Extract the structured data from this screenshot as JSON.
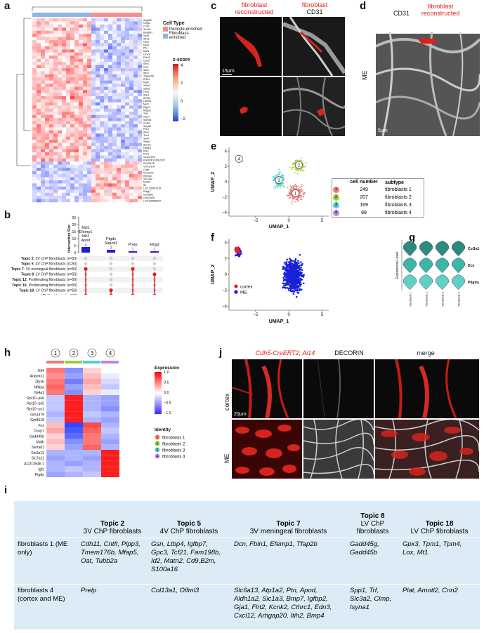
{
  "panels": {
    "a": "a",
    "b": "b",
    "c": "c",
    "d": "d",
    "e": "e",
    "f": "f",
    "g": "g",
    "h": "h",
    "i": "i",
    "j": "j"
  },
  "panel_a": {
    "genes": [
      "Ang20b",
      "Gng11",
      "Crnl1",
      "Sox15",
      "Rps6kl1",
      "Sox5",
      "Sfrp1",
      "Gm4",
      "Nkd1",
      "Phx",
      "Nkd1",
      "Cxxc4",
      "Prkd1",
      "Ccl1b",
      "Sml1",
      "Cer1",
      "Stom",
      "Wis2",
      "Trappc6b",
      "Kl1a1",
      "Rgs2",
      "Vimn2",
      "Ssbp2",
      "Fnd1",
      "Sbp1",
      "Arhnb",
      "Lamb3",
      "Myct",
      "Ptgs2",
      "Mrgpr1",
      "Tnf1",
      "Nepn",
      "Samd4",
      "Gnb4",
      "Smyd1",
      "Pura",
      "Aass",
      "Trhr1",
      "Sax9",
      "Smpd",
      "Slc7p1",
      "Fgfbp1",
      "Rrs1",
      "Phx1",
      "Vmn2r150",
      "EGFP/EYFP/ECFP",
      "Gm25126",
      "Vmn1r104",
      "Cdzb",
      "Vmn2r49",
      "Rbm33",
      "Slc13a2",
      "Mef2d",
      "Ifit",
      "LOC118587918",
      "Phkg1",
      "Gm3893",
      "Gm33409",
      "LOC118568632"
    ],
    "legend_title": "Cell Type",
    "legend_items": [
      "Pericyte-enriched",
      "Fibroblast-enriched"
    ],
    "legend_colors": [
      "#f4908c",
      "#8ab6e0"
    ],
    "zscore_title": "z-score",
    "zscore_ticks": [
      "4",
      "2",
      "0",
      "−2"
    ]
  },
  "panel_b": {
    "ylabel": "Intersection Size",
    "y_ticks": [
      "0",
      "5",
      "10",
      "15",
      "20",
      "25"
    ],
    "bar_values": [
      4,
      2,
      1,
      1
    ],
    "bar_labels": [
      "4",
      "2",
      "1",
      "1"
    ],
    "bar_gene_text": [
      "Nbl1\nEfemp1\nItih2\nApod",
      "Ptgds\nSapcd2",
      "Prelp",
      "Hbgd"
    ],
    "sets": [
      {
        "label_bold": "Topic 2",
        "label_rest": ": 3V ChP fibroblasts (n=50)"
      },
      {
        "label_bold": "Topic 5",
        "label_rest": ": 4V ChP fibroblasts (n=50)"
      },
      {
        "label_bold": "Topic 7",
        "label_rest": ": 3V meningeal fibroblasts (n=50)"
      },
      {
        "label_bold": "Topic 8",
        "label_rest": ": LV ChP fibroblasts (n=50)"
      },
      {
        "label_bold": "Topic 12",
        "label_rest": ": Proliferating fibroblasts (n=50)"
      },
      {
        "label_bold": "Topic 16",
        "label_rest": ": Proliferating fibroblasts (n=50)"
      },
      {
        "label_bold": "Topic 18",
        "label_rest": ": LV ChP fibroblasts (n=50)"
      },
      {
        "label_bold": "",
        "label_rest": "ME fibroblasts (n=118)"
      }
    ]
  },
  "panel_c": {
    "title_left": "fibroblast reconstructed",
    "title_right_1": "fibroblast",
    "title_right_2": "CD31",
    "scale": "15µm"
  },
  "panel_d": {
    "title_left": "CD31",
    "title_right": "fibroblast reconstructed",
    "side_label": "ME",
    "scale": "5µm"
  },
  "panel_e": {
    "xlabel": "UMAP_1",
    "ylabel": "UMAP_2",
    "x_ticks": [
      "−5",
      "0",
      "5"
    ],
    "y_ticks": [
      "4",
      "2",
      "0",
      "−2",
      "−4"
    ],
    "table_headers": [
      "cell number",
      "subtype"
    ],
    "rows": [
      {
        "id": "1",
        "n": "249",
        "subtype": "fibroblasts 1",
        "color": "#ef7b7b"
      },
      {
        "id": "2",
        "n": "207",
        "subtype": "fibroblasts 2",
        "color": "#9acd32"
      },
      {
        "id": "3",
        "n": "169",
        "subtype": "fibroblasts 3",
        "color": "#4fd1cf"
      },
      {
        "id": "4",
        "n": "89",
        "subtype": "fibroblasts 4",
        "color": "#c083e0"
      }
    ]
  },
  "panel_f": {
    "xlabel": "UMAP_1",
    "ylabel": "UMAP_2",
    "x_ticks": [
      "−5",
      "0",
      "5"
    ],
    "y_ticks": [
      "4",
      "2",
      "0",
      "−2",
      "−4"
    ],
    "legend": [
      {
        "label": "cortex",
        "color": "#e8202a"
      },
      {
        "label": "ME",
        "color": "#1a22d6"
      }
    ]
  },
  "panel_g": {
    "ylabel": "Expression Level",
    "genes": [
      "Col1a1",
      "Dcn",
      "Pdgfra"
    ],
    "groups": [
      "fibroblasts 1",
      "fibroblasts 2",
      "fibroblasts 3",
      "fibroblasts 4"
    ],
    "colors": [
      "#2e8a80",
      "#3fb5a6",
      "#5fd0c8"
    ]
  },
  "panel_h": {
    "col_ids": [
      "1",
      "2",
      "3",
      "4"
    ],
    "col_colors": [
      "#ef7b7b",
      "#9acd32",
      "#4fd1cf",
      "#c083e0"
    ],
    "genes": [
      "Klf4",
      "Adamts1",
      "Zfp36",
      "Nfkbia",
      "Nr4a1",
      "Rpl10−ps6",
      "Rpl10−ps5",
      "Rpl10−ps1",
      "Gm3379",
      "Gm8618",
      "Fos",
      "Dusp1",
      "Gadd45b",
      "Mafb",
      "Sertad1",
      "Slc6a13",
      "Slc7a11",
      "AC013546.1",
      "Igf2",
      "Ptgds"
    ],
    "legend_title": "Expression",
    "legend_ticks": [
      "1.0",
      "0.5",
      "0.0",
      "−0.5",
      "−1.0"
    ],
    "identity_title": "Identity",
    "identity_items": [
      "fibroblasts 1",
      "fibroblasts 2",
      "fibroblasts 3",
      "fibroblasts 4"
    ]
  },
  "panel_j": {
    "header_1": "Cdh5-CreERT2; Ai14",
    "header_2": "DECORIN",
    "header_3": "merge",
    "row_1": "cortex",
    "row_2": "ME",
    "scale": "20µm"
  },
  "panel_i": {
    "topics": [
      {
        "title": "Topic 2",
        "sub": "3V ChP fibroblasts"
      },
      {
        "title": "Topic 5",
        "sub": "4V ChP fibroblasts"
      },
      {
        "title": "Topic 7",
        "sub": "3V meningeal fibroblasts"
      },
      {
        "title": "Topic 8",
        "sub": "LV ChP fibroblasts"
      },
      {
        "title": "Topic 18",
        "sub": "LV ChP fibroblasts"
      }
    ],
    "rows": [
      {
        "label": "fibroblasts 1 (ME only)",
        "cells": [
          "Cdh11, Cntfr, Plpp3, Tmem176b, Mfap5, Oat, Tubb2a",
          "Gsn, Ltbp4, Igfbp7, Gpc3, Tcf21, Fam198b, Id2, Matn2, Cd9,B2m,    S100a16",
          "Dcn, Fbln1, Efemp1, Tfap2b",
          "Gadd45g, Gadd45b",
          "Gpx3, Tpm1, Tpm4, Lox, Mt1"
        ]
      },
      {
        "label": "fibroblasts 4 (cortex and ME)",
        "cells": [
          "Prelp",
          "Col13a1, Olfml3",
          "Slc6a13, Atp1a2, Ptn, Apod, Aldh1a2, Slc1a3, Bmp7, Igfbp2, Gja1, Flrt2, Kcnk2, Cthrc1, Edn3, Cxcl12, Arhgap20, Itih2, Bmp4",
          "Spp1, Trf, Slc3a2, Clmp, Isyna1",
          "Plat, Amotl2, Cnn2"
        ]
      }
    ],
    "bg": "#dcecf7"
  }
}
